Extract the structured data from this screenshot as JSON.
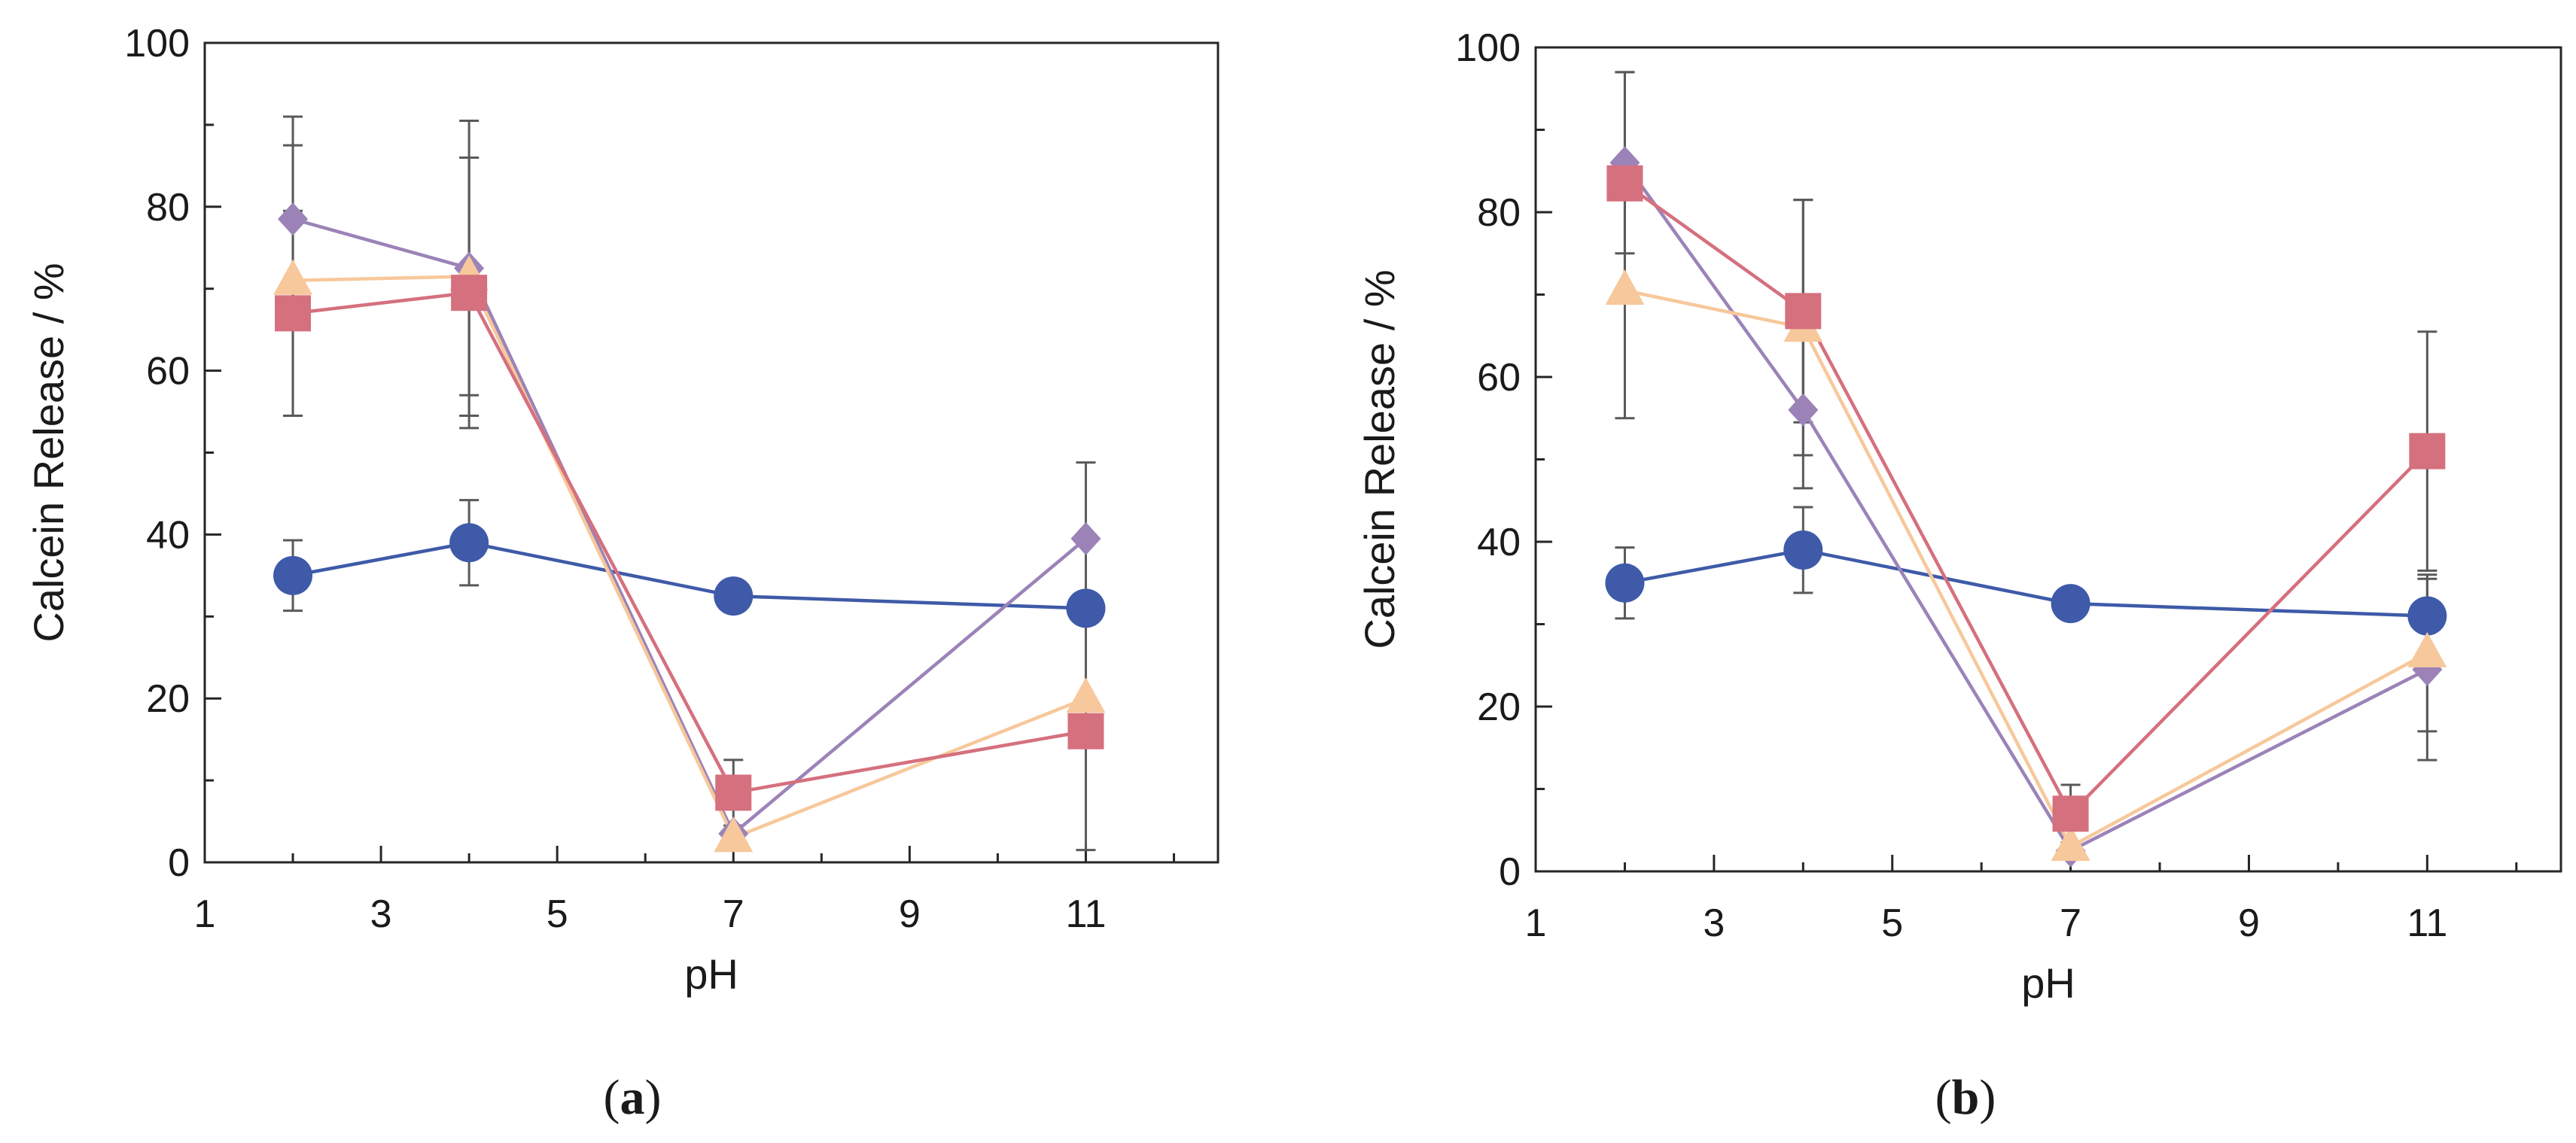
{
  "chart_data": [
    {
      "type": "line",
      "panel": "a",
      "caption_open": "(",
      "caption_letter": "a",
      "caption_close": ")",
      "xlabel": "pH",
      "ylabel": "Calcein Release / %",
      "xlim": [
        1,
        12.5
      ],
      "ylim": [
        0,
        100
      ],
      "xticks": [
        1,
        3,
        5,
        7,
        9,
        11
      ],
      "yticks": [
        0,
        20,
        40,
        60,
        80,
        100
      ],
      "x": [
        2,
        4,
        7,
        11
      ],
      "series": [
        {
          "name": "circle-series",
          "marker": "circle",
          "color": "#3e5aa8",
          "values": [
            35,
            39,
            32.5,
            31
          ],
          "errors": [
            4.3,
            5.2,
            0,
            0
          ]
        },
        {
          "name": "diamond-series",
          "marker": "diamond",
          "color": "#9b83b8",
          "values": [
            78.5,
            72.5,
            3.5,
            39.5
          ],
          "errors": [
            12.5,
            18,
            0,
            9.3
          ]
        },
        {
          "name": "triangle-series",
          "marker": "triangle",
          "color": "#f7c89b",
          "values": [
            71,
            71.5,
            3,
            20
          ],
          "errors": [
            16.5,
            14.5,
            0,
            0
          ]
        },
        {
          "name": "square-series",
          "marker": "square",
          "color": "#d5707e",
          "values": [
            67,
            69.5,
            8.5,
            16
          ],
          "errors": [
            12.5,
            16.5,
            4,
            14.5
          ]
        }
      ]
    },
    {
      "type": "line",
      "panel": "b",
      "caption_open": "(",
      "caption_letter": "b",
      "caption_close": ")",
      "xlabel": "pH",
      "ylabel": "Calcein Release / %",
      "xlim": [
        1,
        12.5
      ],
      "ylim": [
        0,
        100
      ],
      "xticks": [
        1,
        3,
        5,
        7,
        9,
        11
      ],
      "yticks": [
        0,
        20,
        40,
        60,
        80,
        100
      ],
      "x": [
        2,
        4,
        7,
        11
      ],
      "series": [
        {
          "name": "circle-series",
          "marker": "circle",
          "color": "#3e5aa8",
          "values": [
            35,
            39,
            32.5,
            31
          ],
          "errors": [
            4.3,
            5.2,
            0,
            0
          ]
        },
        {
          "name": "diamond-series",
          "marker": "diamond",
          "color": "#9b83b8",
          "values": [
            86,
            56,
            2.5,
            24.5
          ],
          "errors": [
            11,
            9.5,
            0,
            11
          ]
        },
        {
          "name": "triangle-series",
          "marker": "triangle",
          "color": "#f7c89b",
          "values": [
            70.5,
            66,
            3,
            26.5
          ],
          "errors": [
            15.5,
            15.5,
            0,
            9.5
          ]
        },
        {
          "name": "square-series",
          "marker": "square",
          "color": "#d5707e",
          "values": [
            83.5,
            68,
            7,
            51
          ],
          "errors": [
            13.5,
            13.5,
            3.5,
            14.5
          ]
        }
      ]
    }
  ]
}
